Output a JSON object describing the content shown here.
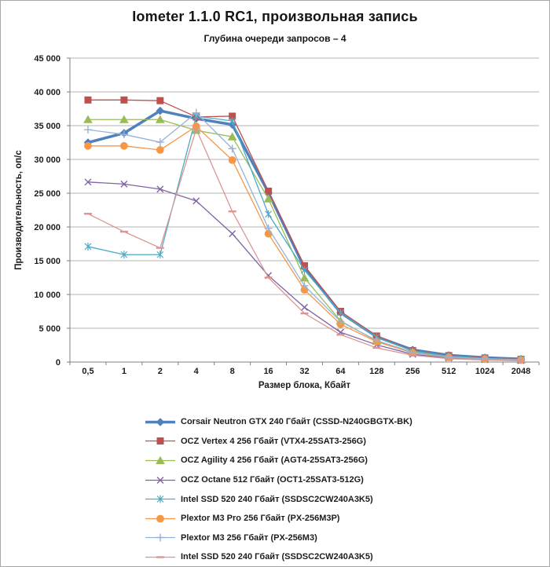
{
  "chart_data": {
    "type": "line",
    "title": "Iometer 1.1.0 RC1, произвольная запись",
    "subtitle": "Глубина очереди запросов – 4",
    "xlabel": "Размер блока, Кбайт",
    "ylabel": "Производительность,  оп/с",
    "ylim": [
      0,
      45000
    ],
    "ytick_step": 5000,
    "ytick_labels": [
      "0",
      "5 000",
      "10 000",
      "15 000",
      "20 000",
      "25 000",
      "30 000",
      "35 000",
      "40 000",
      "45 000"
    ],
    "grid": "horizontal",
    "legend_position": "bottom-left",
    "categories": [
      "0,5",
      "1",
      "2",
      "4",
      "8",
      "16",
      "32",
      "64",
      "128",
      "256",
      "512",
      "1024",
      "2048"
    ],
    "series": [
      {
        "name": "Corsair Neutron GTX 240 Гбайт (CSSD-N240GBGTX-BK)",
        "color": "#4F81BD",
        "marker": "diamond",
        "line_width": 3.5,
        "values": [
          32500,
          33900,
          37200,
          36050,
          35150,
          25100,
          13950,
          7300,
          3750,
          1800,
          1000,
          650,
          450
        ]
      },
      {
        "name": "OCZ Vertex  4 256 Гбайт (VTX4-25SAT3-256G)",
        "color": "#C0504D",
        "marker": "square",
        "line_width": 1.3,
        "values": [
          38800,
          38800,
          38700,
          36300,
          36400,
          25300,
          14250,
          7500,
          3850,
          1700,
          950,
          600,
          400
        ]
      },
      {
        "name": "OCZ Agility 4 256 Гбайт (AGT4-25SAT3-256G)",
        "color": "#9BBB59",
        "marker": "triangle",
        "line_width": 1.3,
        "values": [
          35900,
          35900,
          35900,
          34300,
          33350,
          24150,
          12450,
          6100,
          3100,
          1500,
          800,
          500,
          330
        ]
      },
      {
        "name": "OCZ Octane 512 Гбайт (OCT1-25SAT3-512G)",
        "color": "#8064A2",
        "marker": "x",
        "line_width": 1.3,
        "values": [
          26650,
          26350,
          25600,
          23850,
          19000,
          12800,
          8100,
          4400,
          2550,
          1150,
          600,
          350,
          220
        ]
      },
      {
        "name": "Intel SSD 520 240 Гбайт (SSDSC2CW240A3K5)",
        "color": "#4BACC6",
        "marker": "asterisk",
        "line_width": 1.3,
        "values": [
          17100,
          15900,
          15900,
          36400,
          35700,
          21900,
          13600,
          7300,
          3700,
          1650,
          900,
          550,
          380
        ]
      },
      {
        "name": "Plextor M3 Pro 256 Гбайт (PX-256M3P)",
        "color": "#F79646",
        "marker": "circle",
        "line_width": 1.3,
        "values": [
          32000,
          32000,
          31400,
          34900,
          29900,
          19000,
          10700,
          5600,
          3000,
          1350,
          700,
          430,
          300
        ]
      },
      {
        "name": "Plextor M3 256 Гбайт (PX-256M3)",
        "color": "#95B3D7",
        "marker": "plus",
        "line_width": 1.3,
        "values": [
          34400,
          33700,
          32550,
          36900,
          31600,
          19800,
          11300,
          6000,
          3200,
          1400,
          750,
          470,
          320
        ]
      },
      {
        "name": "Intel SSD 520 240 Гбайт (SSDSC2CW240A3K5)",
        "color": "#D99694",
        "marker": "dash",
        "line_width": 1.3,
        "values": [
          21950,
          19300,
          16900,
          34500,
          22300,
          12500,
          7200,
          4050,
          2100,
          1000,
          500,
          300,
          180
        ]
      }
    ]
  }
}
